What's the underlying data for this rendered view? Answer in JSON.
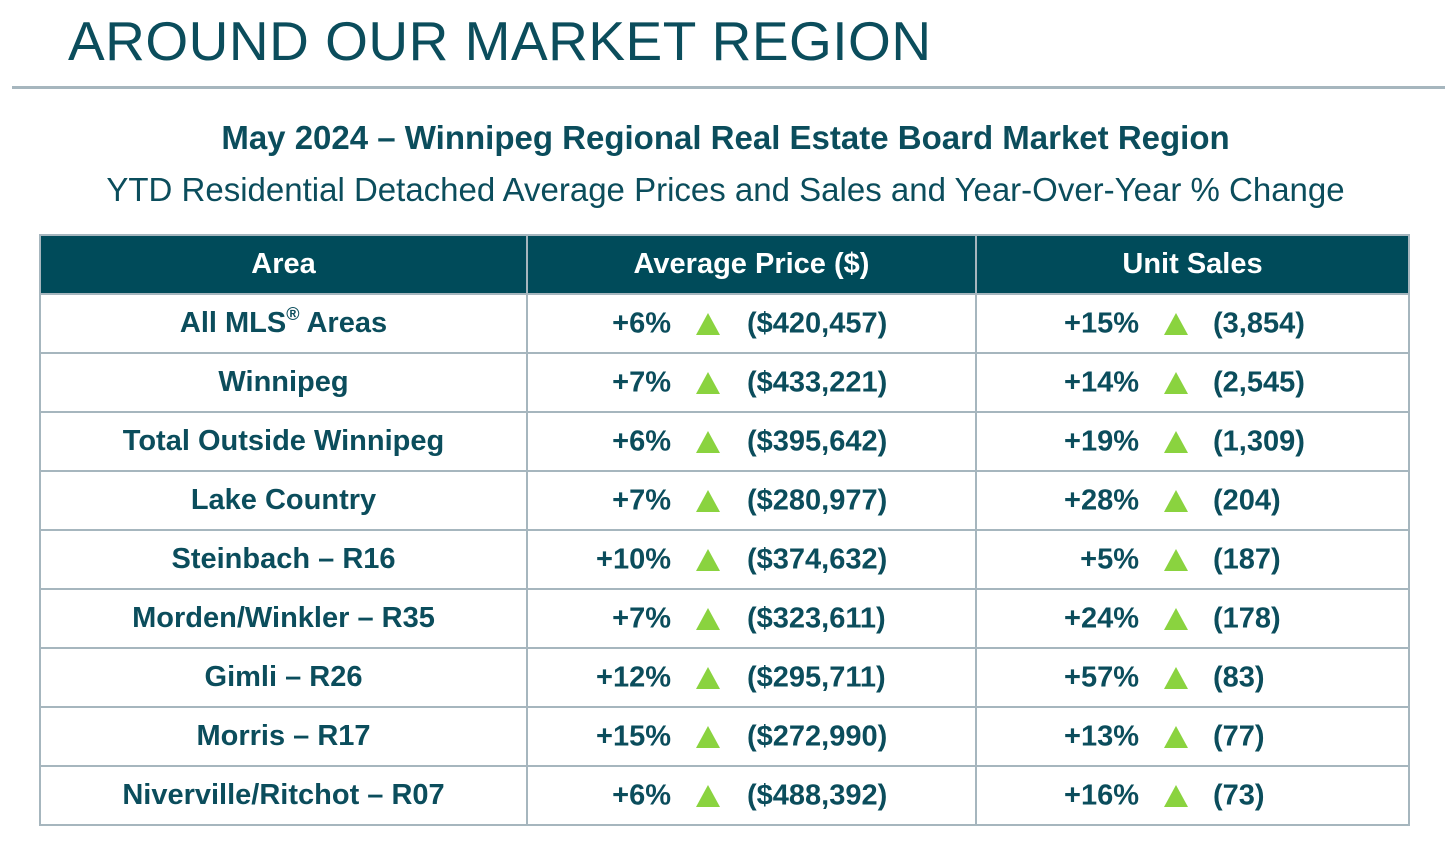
{
  "header": {
    "title": "AROUND OUR MARKET REGION",
    "subtitle": "May 2024 – Winnipeg Regional Real Estate Board Market Region",
    "subtitle2": "YTD Residential Detached Average Prices and Sales and Year-Over-Year % Change"
  },
  "colors": {
    "accent": "#004b5a",
    "text": "#0b4d5c",
    "up_arrow": "#8ad33f",
    "border": "#a6b6be"
  },
  "table": {
    "headers": [
      "Area",
      "Average Price ($)",
      "Unit Sales"
    ],
    "rows": [
      {
        "area": "All MLS",
        "area_sup": "®",
        "area_suffix": " Areas",
        "price_change": "+6%",
        "price_trend": "up-arrow-icon",
        "price": "($420,457)",
        "sales_change": "+15%",
        "sales_trend": "up-arrow-icon",
        "sales": "(3,854)"
      },
      {
        "area": "Winnipeg",
        "price_change": "+7%",
        "price_trend": "up-arrow-icon",
        "price": "($433,221)",
        "sales_change": "+14%",
        "sales_trend": "up-arrow-icon",
        "sales": "(2,545)"
      },
      {
        "area": "Total Outside Winnipeg",
        "price_change": "+6%",
        "price_trend": "up-arrow-icon",
        "price": "($395,642)",
        "sales_change": "+19%",
        "sales_trend": "up-arrow-icon",
        "sales": "(1,309)"
      },
      {
        "area": "Lake Country",
        "price_change": "+7%",
        "price_trend": "up-arrow-icon",
        "price": "($280,977)",
        "sales_change": "+28%",
        "sales_trend": "up-arrow-icon",
        "sales": "(204)"
      },
      {
        "area": "Steinbach – R16",
        "price_change": "+10%",
        "price_trend": "up-arrow-icon",
        "price": "($374,632)",
        "sales_change": "+5%",
        "sales_trend": "up-arrow-icon",
        "sales": "(187)"
      },
      {
        "area": "Morden/Winkler – R35",
        "price_change": "+7%",
        "price_trend": "up-arrow-icon",
        "price": "($323,611)",
        "sales_change": "+24%",
        "sales_trend": "up-arrow-icon",
        "sales": "(178)"
      },
      {
        "area": "Gimli – R26",
        "price_change": "+12%",
        "price_trend": "up-arrow-icon",
        "price": "($295,711)",
        "sales_change": "+57%",
        "sales_trend": "up-arrow-icon",
        "sales": "(83)"
      },
      {
        "area": "Morris – R17",
        "price_change": "+15%",
        "price_trend": "up-arrow-icon",
        "price": "($272,990)",
        "sales_change": "+13%",
        "sales_trend": "up-arrow-icon",
        "sales": "(77)"
      },
      {
        "area": "Niverville/Ritchot – R07",
        "price_change": "+6%",
        "price_trend": "up-arrow-icon",
        "price": "($488,392)",
        "sales_change": "+16%",
        "sales_trend": "up-arrow-icon",
        "sales": "(73)"
      }
    ]
  }
}
